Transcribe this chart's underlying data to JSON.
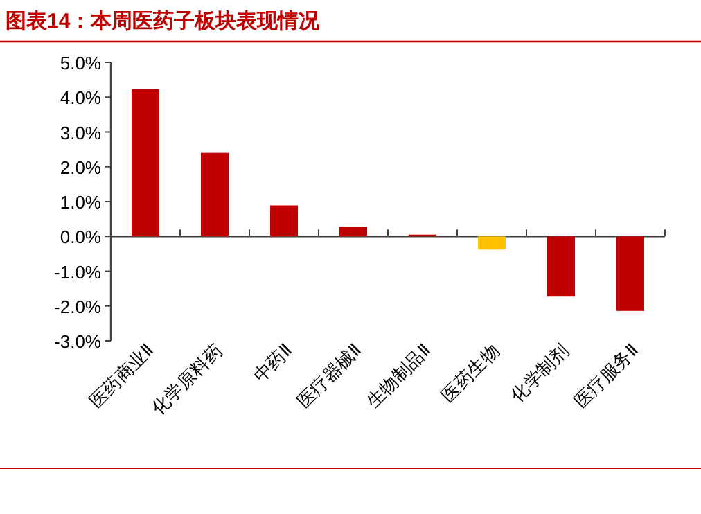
{
  "chart_data": {
    "type": "bar",
    "title": "图表14：本周医药子板块表现情况",
    "categories": [
      "医药商业Ⅱ",
      "化学原料药",
      "中药Ⅱ",
      "医疗器械Ⅱ",
      "生物制品Ⅱ",
      "医药生物",
      "化学制剂",
      "医疗服务Ⅱ"
    ],
    "values": [
      4.23,
      2.4,
      0.89,
      0.27,
      0.05,
      -0.38,
      -1.73,
      -2.14
    ],
    "colors": [
      "#c00000",
      "#c00000",
      "#c00000",
      "#c00000",
      "#c00000",
      "#ffc000",
      "#c00000",
      "#c00000"
    ],
    "ylim": [
      -3,
      5
    ],
    "yticks": [
      {
        "value": 5,
        "label": "5.0%"
      },
      {
        "value": 4,
        "label": "4.0%"
      },
      {
        "value": 3,
        "label": "3.0%"
      },
      {
        "value": 2,
        "label": "2.0%"
      },
      {
        "value": 1,
        "label": "1.0%"
      },
      {
        "value": 0,
        "label": "0.0%"
      },
      {
        "value": -1,
        "label": "-1.0%"
      },
      {
        "value": -2,
        "label": "-2.0%"
      },
      {
        "value": -3,
        "label": "-3.0%"
      }
    ],
    "data_labels": false
  }
}
